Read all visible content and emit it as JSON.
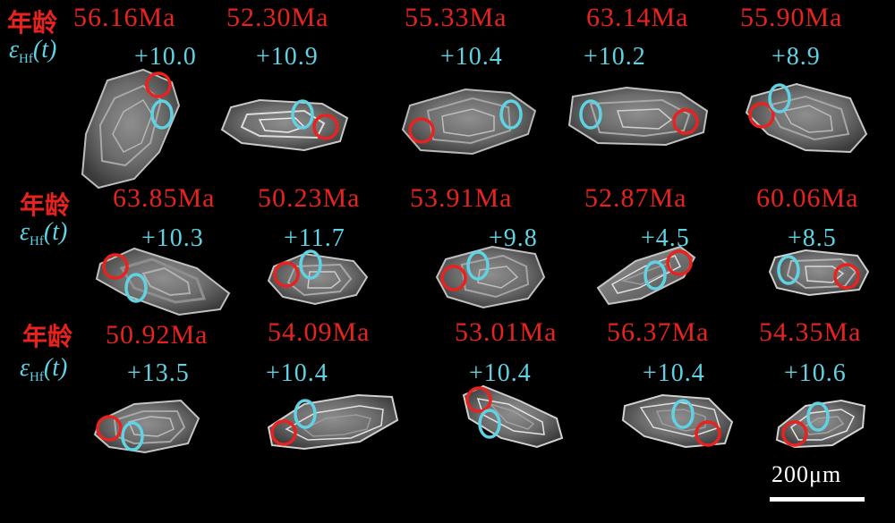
{
  "labels": {
    "age": "年龄",
    "epsilon_symbol": "ε",
    "epsilon_sub": "Hf",
    "epsilon_arg": "(t)"
  },
  "rows": [
    {
      "grains": [
        {
          "age": "56.16Ma",
          "ehf": "+10.0"
        },
        {
          "age": "52.30Ma",
          "ehf": "+10.9"
        },
        {
          "age": "55.33Ma",
          "ehf": "+10.4"
        },
        {
          "age": "63.14Ma",
          "ehf": "+10.2"
        },
        {
          "age": "55.90Ma",
          "ehf": "+8.9"
        }
      ]
    },
    {
      "grains": [
        {
          "age": "63.85Ma",
          "ehf": "+10.3"
        },
        {
          "age": "50.23Ma",
          "ehf": "+11.7"
        },
        {
          "age": "53.91Ma",
          "ehf": "+9.8"
        },
        {
          "age": "52.87Ma",
          "ehf": "+4.5"
        },
        {
          "age": "60.06Ma",
          "ehf": "+8.5"
        }
      ]
    },
    {
      "grains": [
        {
          "age": "50.92Ma",
          "ehf": "+13.5"
        },
        {
          "age": "54.09Ma",
          "ehf": "+10.4"
        },
        {
          "age": "53.01Ma",
          "ehf": "+10.4"
        },
        {
          "age": "56.37Ma",
          "ehf": "+10.4"
        },
        {
          "age": "54.35Ma",
          "ehf": "+10.6"
        }
      ]
    }
  ],
  "scale_bar": {
    "label": "200μm"
  },
  "colors": {
    "background": "#000000",
    "age_text": "#e8221e",
    "hf_text": "#5fd3e4",
    "age_spot": "#e8221e",
    "hf_spot": "#5fd3e4"
  }
}
